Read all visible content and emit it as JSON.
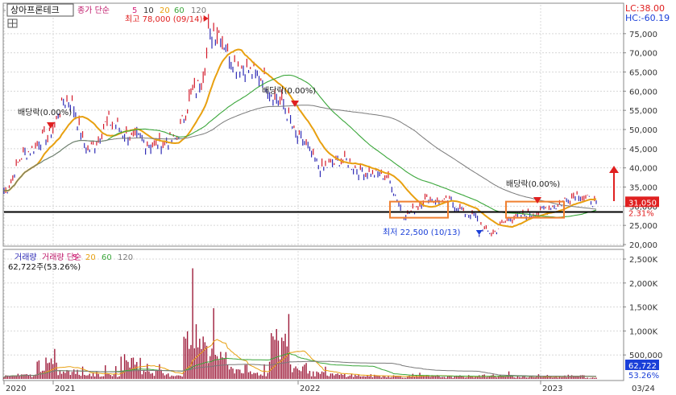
{
  "title": "상아프론테크",
  "price_legend": {
    "prefix": "종가 단순",
    "ma": [
      "5",
      "10",
      "20",
      "60",
      "120"
    ]
  },
  "volume_legend": {
    "prefix": "거래량 단순",
    "ma": [
      "5",
      "20",
      "60",
      "120"
    ],
    "title": "거래량",
    "current": "62,722주(53.26%)"
  },
  "colors": {
    "candle": "#2e2bb5",
    "ma5": "#d4247a",
    "ma10": "#e8a010",
    "ma20": "#3aa63a",
    "ma60": "#7a7a7a",
    "ma120": "#ff8c00",
    "vol": "#9e1b3a",
    "box": "#f08030",
    "arrow_red": "#e02020",
    "arrow_blue": "#1a3fd8",
    "support": "#000000"
  },
  "lc_label": "LC:38.00",
  "hc_label": "HC:-60.19",
  "annotations": {
    "high": "최고 78,000 (09/14)",
    "low": "최저 22,500 (10/13)",
    "div1": "배당락(0.00%)",
    "div2": "배당락(0.00%)",
    "div3": "배당락(0.00%)"
  },
  "price_badge": "31,050",
  "change_badge": "2.31%",
  "volume_badge": "62,722",
  "volume_pct_badge": "53.26%",
  "date_labels": [
    "2020",
    "2021",
    "2022",
    "2023",
    "03/24"
  ],
  "chart_data": [
    {
      "type": "line",
      "title": "종가",
      "ylim": [
        20000,
        80000
      ],
      "y_ticks": [
        "20,000",
        "25,000",
        "30,000",
        "35,000",
        "40,000",
        "45,000",
        "50,000",
        "55,000",
        "60,000",
        "65,000",
        "70,000",
        "75,000"
      ],
      "x_labels": [
        "2020",
        "2021",
        "2022",
        "2023",
        "03/24"
      ],
      "series": [
        {
          "name": "종가",
          "x": [
            "2020-11",
            "2020-12",
            "2021-01",
            "2021-02",
            "2021-03",
            "2021-04",
            "2021-05",
            "2021-06",
            "2021-07",
            "2021-08",
            "2021-09",
            "2021-10",
            "2021-11",
            "2021-12",
            "2022-01",
            "2022-02",
            "2022-03",
            "2022-04",
            "2022-05",
            "2022-06",
            "2022-07",
            "2022-08",
            "2022-09",
            "2022-10",
            "2022-11",
            "2022-12",
            "2023-01",
            "2023-02",
            "2023-03"
          ],
          "values": [
            34000,
            44000,
            48000,
            58000,
            45000,
            52000,
            48000,
            46000,
            47000,
            60000,
            76000,
            67000,
            64000,
            58000,
            47000,
            40000,
            42000,
            39000,
            38000,
            28000,
            32000,
            31000,
            28000,
            23000,
            27000,
            28000,
            30000,
            33000,
            31050
          ]
        }
      ],
      "support_line": 28500,
      "highlight": {
        "high": 78000,
        "low": 22500
      }
    },
    {
      "type": "bar",
      "title": "거래량",
      "ylim": [
        0,
        2500000
      ],
      "y_ticks": [
        "500,000",
        "1,000K",
        "1,500K",
        "2,000K",
        "2,500K"
      ],
      "series": [
        {
          "name": "거래량",
          "values": [
            180000,
            220000,
            900000,
            420000,
            300000,
            260000,
            1100000,
            400000,
            250000,
            2300000,
            1600000,
            600000,
            350000,
            2200000,
            700000,
            320000,
            250000,
            200000,
            180000,
            150000,
            170000,
            140000,
            160000,
            200000,
            150000,
            130000,
            170000,
            180000,
            62722
          ]
        }
      ]
    }
  ]
}
